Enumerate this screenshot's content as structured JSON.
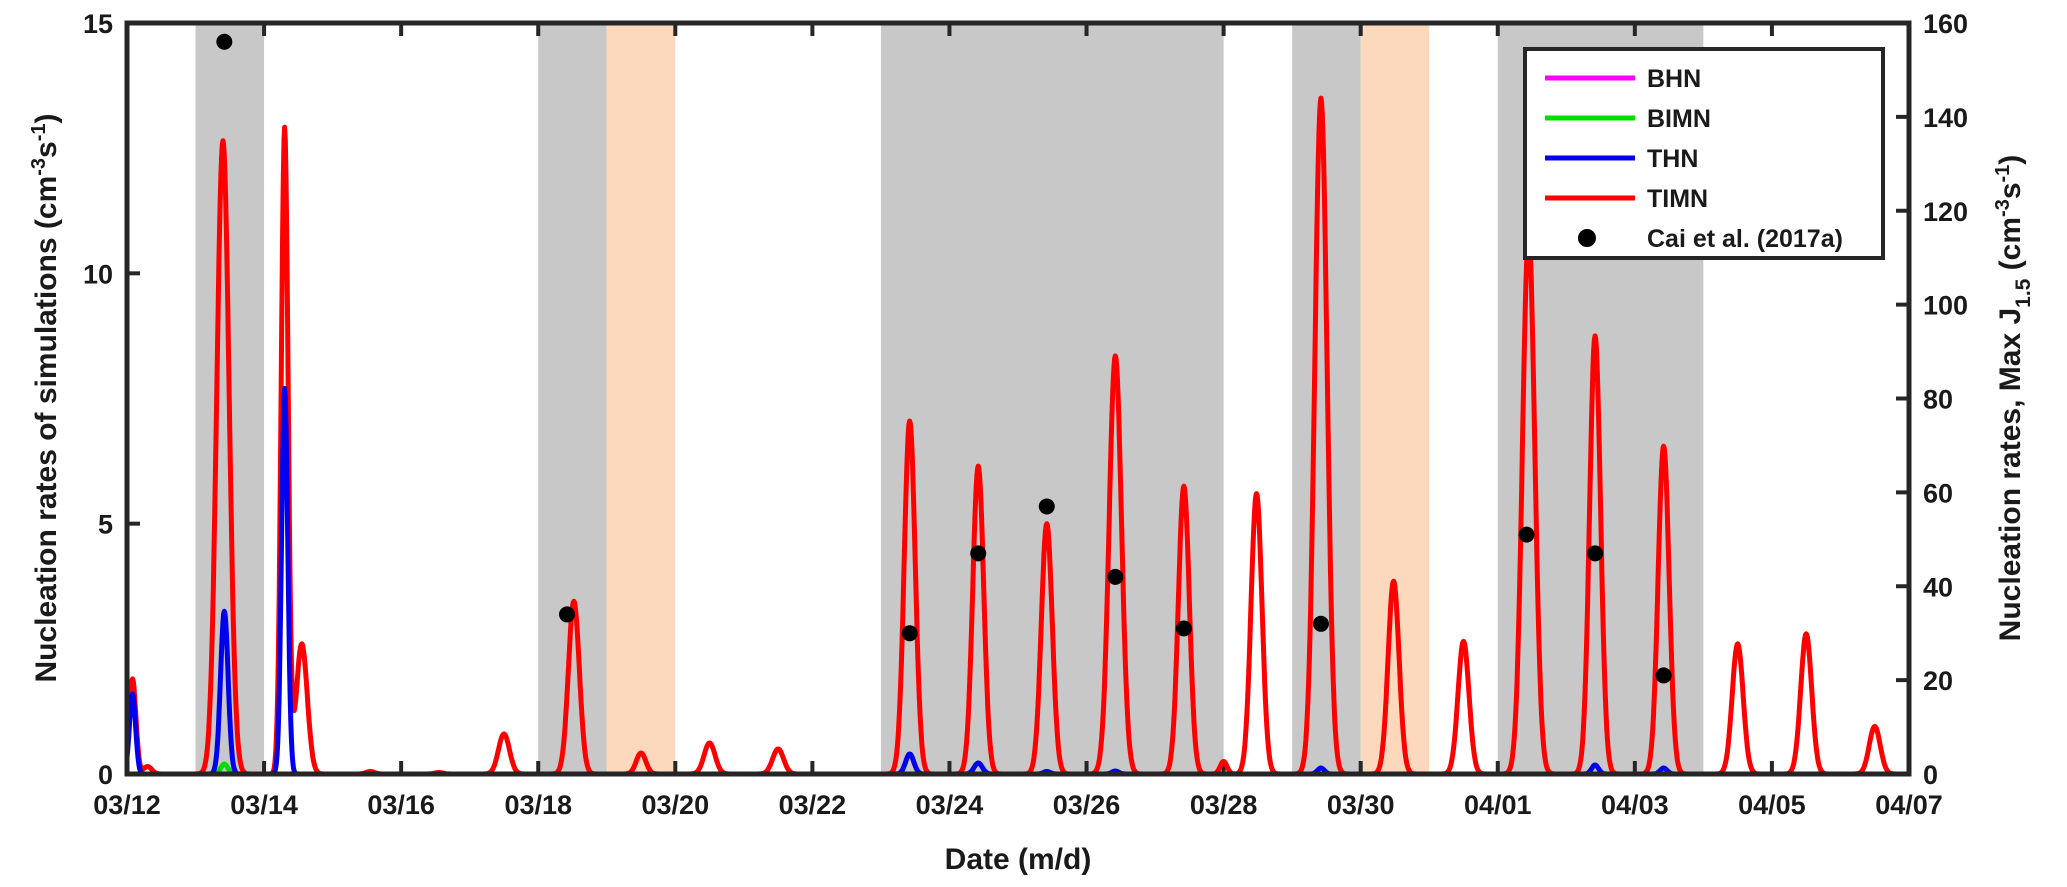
{
  "chart_data": {
    "type": "line",
    "xlabel": "Date (m/d)",
    "ylabel_left": "Nucleation rates of simulations (cm",
    "ylabel_left_unit_sup1": "-3",
    "ylabel_left_unit_mid": "s",
    "ylabel_left_unit_sup2": "-1",
    "ylabel_left_close": ")",
    "ylabel_right": "Nucleation rates, Max J",
    "ylabel_right_sub": "1.5",
    "ylabel_right_unit_open": " (cm",
    "ylabel_right_unit_sup1": "-3",
    "ylabel_right_unit_mid": "s",
    "ylabel_right_unit_sup2": "-1",
    "ylabel_right_unit_close": ")",
    "xlim": [
      0,
      26
    ],
    "ylim_left": [
      0,
      15
    ],
    "ylim_right": [
      0,
      160
    ],
    "x_ticks": [
      0,
      2,
      4,
      6,
      8,
      10,
      12,
      14,
      16,
      18,
      20,
      22,
      24,
      26
    ],
    "x_tick_labels": [
      "03/12",
      "03/14",
      "03/16",
      "03/18",
      "03/20",
      "03/22",
      "03/24",
      "03/26",
      "03/28",
      "03/30",
      "04/01",
      "04/03",
      "04/05",
      "04/07"
    ],
    "y_left_ticks": [
      0,
      5,
      10,
      15
    ],
    "y_left_tick_labels": [
      "0",
      "5",
      "10",
      "15"
    ],
    "y_right_ticks": [
      0,
      20,
      40,
      60,
      80,
      100,
      120,
      140,
      160
    ],
    "y_right_tick_labels": [
      "0",
      "20",
      "40",
      "60",
      "80",
      "100",
      "120",
      "140",
      "160"
    ],
    "x_unit": "days since 03/12",
    "shaded_regions": [
      {
        "x0": 1.0,
        "x1": 2.0,
        "color": "#c8c8c8"
      },
      {
        "x0": 6.0,
        "x1": 7.0,
        "color": "#c8c8c8"
      },
      {
        "x0": 7.0,
        "x1": 8.0,
        "color": "#fcd9bc"
      },
      {
        "x0": 11.0,
        "x1": 16.0,
        "color": "#c8c8c8"
      },
      {
        "x0": 17.0,
        "x1": 18.0,
        "color": "#c8c8c8"
      },
      {
        "x0": 18.0,
        "x1": 19.0,
        "color": "#fcd9bc"
      },
      {
        "x0": 20.0,
        "x1": 23.0,
        "color": "#c8c8c8"
      }
    ],
    "series": [
      {
        "name": "BHN",
        "color": "#ff00ff",
        "axis": "left",
        "peaks": []
      },
      {
        "name": "BIMN",
        "color": "#00dd00",
        "axis": "left",
        "peaks": [
          [
            1.42,
            0.2,
            0.05
          ]
        ]
      },
      {
        "name": "THN",
        "color": "#0000ee",
        "axis": "left",
        "peaks": [
          [
            0.08,
            1.6,
            0.045
          ],
          [
            1.42,
            3.25,
            0.055
          ],
          [
            2.3,
            7.7,
            0.045
          ],
          [
            11.42,
            0.4,
            0.06
          ],
          [
            12.42,
            0.22,
            0.06
          ],
          [
            13.42,
            0.05,
            0.05
          ],
          [
            14.42,
            0.06,
            0.05
          ],
          [
            17.42,
            0.12,
            0.05
          ],
          [
            21.42,
            0.18,
            0.05
          ],
          [
            22.42,
            0.12,
            0.05
          ]
        ]
      },
      {
        "name": "TIMN",
        "color": "#ff0000",
        "axis": "left",
        "peaks": [
          [
            0.08,
            1.9,
            0.05
          ],
          [
            0.3,
            0.15,
            0.06
          ],
          [
            1.4,
            12.65,
            0.09
          ],
          [
            2.3,
            12.9,
            0.05
          ],
          [
            2.55,
            2.6,
            0.08
          ],
          [
            3.55,
            0.05,
            0.06
          ],
          [
            4.55,
            0.03,
            0.06
          ],
          [
            5.5,
            0.8,
            0.08
          ],
          [
            6.52,
            3.45,
            0.08
          ],
          [
            7.5,
            0.42,
            0.07
          ],
          [
            8.5,
            0.62,
            0.08
          ],
          [
            9.5,
            0.5,
            0.08
          ],
          [
            11.42,
            7.05,
            0.08
          ],
          [
            12.42,
            6.15,
            0.08
          ],
          [
            13.42,
            5.0,
            0.08
          ],
          [
            14.42,
            8.35,
            0.09
          ],
          [
            15.42,
            5.75,
            0.08
          ],
          [
            16.48,
            5.6,
            0.08
          ],
          [
            16.0,
            0.25,
            0.05
          ],
          [
            17.42,
            13.5,
            0.09
          ],
          [
            18.48,
            3.85,
            0.08
          ],
          [
            19.5,
            2.65,
            0.08
          ],
          [
            20.45,
            10.8,
            0.09
          ],
          [
            21.42,
            8.75,
            0.08
          ],
          [
            22.42,
            6.55,
            0.08
          ],
          [
            23.5,
            2.6,
            0.08
          ],
          [
            24.5,
            2.8,
            0.08
          ],
          [
            25.5,
            0.95,
            0.08
          ]
        ]
      },
      {
        "name": "Cai et al. (2017a)",
        "color": "#000000",
        "axis": "right",
        "type": "scatter",
        "x": [
          1.42,
          6.42,
          11.42,
          12.42,
          13.42,
          14.42,
          15.42,
          17.42,
          20.42,
          21.42,
          22.42
        ],
        "y": [
          156,
          34,
          30,
          47,
          57,
          42,
          31,
          32,
          51,
          47,
          21
        ]
      }
    ],
    "legend": {
      "position": "top-right",
      "entries": [
        "BHN",
        "BIMN",
        "THN",
        "TIMN",
        "Cai et al. (2017a)"
      ]
    }
  }
}
